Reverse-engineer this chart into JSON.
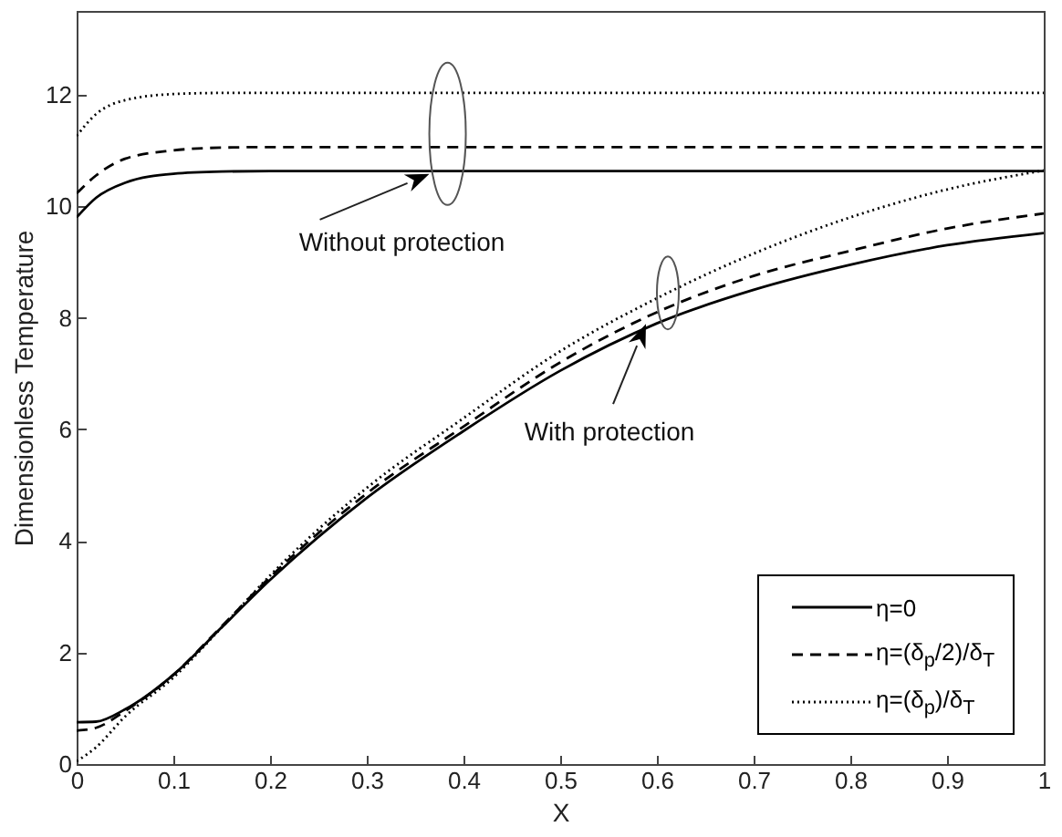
{
  "chart_data": {
    "type": "line",
    "xlabel": "X",
    "ylabel": "Dimensionless Temperature",
    "x": [
      0,
      0.02,
      0.05,
      0.1,
      0.15,
      0.2,
      0.3,
      0.4,
      0.5,
      0.6,
      0.7,
      0.8,
      0.9,
      1
    ],
    "series": [
      {
        "name": "η=0",
        "color": "#000000",
        "line_style": "solid",
        "values": [
          9.8,
          10.15,
          10.42,
          10.58,
          10.62,
          10.63,
          10.63,
          10.63,
          10.63,
          10.63,
          10.63,
          10.63,
          10.63,
          10.63
        ]
      },
      {
        "name": "η=(δ$_{p}$/2)/δ$_{T}$",
        "color": "#000000",
        "line_style": "dashed",
        "values": [
          10.23,
          10.55,
          10.85,
          11.0,
          11.05,
          11.06,
          11.06,
          11.06,
          11.06,
          11.06,
          11.06,
          11.06,
          11.06,
          11.06
        ]
      },
      {
        "name": "η=(δ$_{p}$)/δ$_{T}$",
        "color": "#000000",
        "line_style": "dotted",
        "values": [
          11.26,
          11.65,
          11.9,
          12.01,
          12.03,
          12.03,
          12.03,
          12.03,
          12.03,
          12.03,
          12.03,
          12.03,
          12.03,
          12.03
        ]
      },
      {
        "color": "#000000",
        "line_style": "solid",
        "values": [
          0.75,
          0.76,
          0.98,
          1.6,
          2.45,
          3.3,
          4.77,
          5.97,
          7.05,
          7.9,
          8.5,
          8.95,
          9.3,
          9.52
        ]
      },
      {
        "color": "#000000",
        "line_style": "dashed",
        "values": [
          0.6,
          0.65,
          0.95,
          1.6,
          2.47,
          3.35,
          4.85,
          6.05,
          7.2,
          8.1,
          8.75,
          9.2,
          9.6,
          9.87
        ]
      },
      {
        "color": "#000000",
        "line_style": "dotted",
        "values": [
          0.05,
          0.3,
          0.85,
          1.55,
          2.45,
          3.38,
          4.95,
          6.2,
          7.4,
          8.35,
          9.15,
          9.8,
          10.3,
          10.64
        ]
      }
    ],
    "xlim": [
      0,
      1
    ],
    "xticks": [
      0,
      0.1,
      0.2,
      0.3,
      0.4,
      0.5,
      0.6,
      0.7,
      0.8,
      0.9,
      1
    ],
    "ylim": [
      0,
      13.5
    ],
    "yticks": [
      0,
      2,
      4,
      6,
      8,
      10,
      12
    ],
    "legend": "bottom right",
    "annotations": [
      "Without protection",
      "With protection"
    ]
  }
}
